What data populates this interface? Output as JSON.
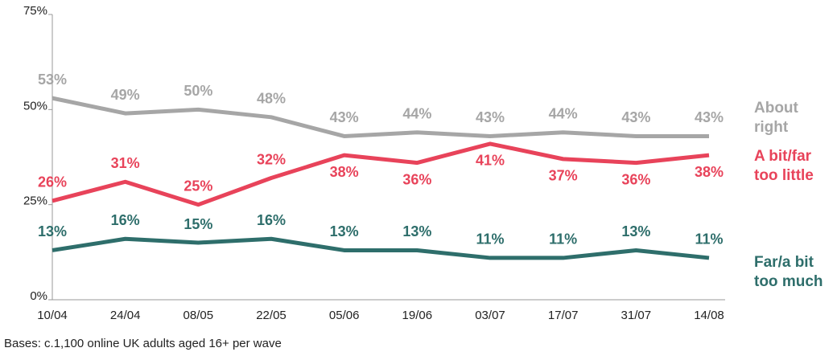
{
  "chart_data": {
    "type": "line",
    "categories": [
      "10/04",
      "24/04",
      "08/05",
      "22/05",
      "05/06",
      "19/06",
      "03/07",
      "17/07",
      "31/07",
      "14/08"
    ],
    "series": [
      {
        "name": "About right",
        "color": "#a6a6a6",
        "values": [
          53,
          49,
          50,
          48,
          43,
          44,
          43,
          44,
          43,
          43
        ],
        "value_labels": [
          "53%",
          "49%",
          "50%",
          "48%",
          "43%",
          "44%",
          "43%",
          "44%",
          "43%",
          "43%"
        ]
      },
      {
        "name": "A bit/far too little",
        "color": "#e8435a",
        "values": [
          26,
          31,
          25,
          32,
          38,
          36,
          41,
          37,
          36,
          38
        ],
        "value_labels": [
          "26%",
          "31%",
          "25%",
          "32%",
          "38%",
          "36%",
          "41%",
          "37%",
          "36%",
          "38%"
        ]
      },
      {
        "name": "Far/a bit too much",
        "color": "#2e6e6b",
        "values": [
          13,
          16,
          15,
          16,
          13,
          13,
          11,
          11,
          13,
          11
        ],
        "value_labels": [
          "13%",
          "16%",
          "15%",
          "16%",
          "13%",
          "13%",
          "11%",
          "11%",
          "13%",
          "11%"
        ]
      }
    ],
    "ylim": [
      0,
      75
    ],
    "yticks": [
      {
        "value": 0,
        "label": "0%"
      },
      {
        "value": 25,
        "label": "25%"
      },
      {
        "value": 50,
        "label": "50%"
      },
      {
        "value": 75,
        "label": "75%"
      }
    ],
    "footnote": "Bases: c.1,100 online UK adults aged 16+ per wave"
  }
}
